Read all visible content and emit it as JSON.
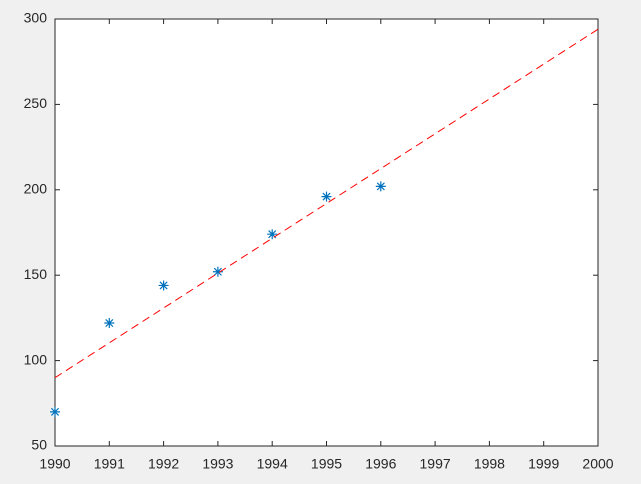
{
  "chart_data": {
    "type": "scatter",
    "series": [
      {
        "color": "#0072bd",
        "marker": "*",
        "line_style": "none",
        "x": [
          1990,
          1991,
          1992,
          1993,
          1994,
          1995,
          1996
        ],
        "values": [
          70,
          122,
          144,
          152,
          174,
          196,
          202
        ]
      },
      {
        "color": "#ff0000",
        "marker": "none",
        "line_style": "dashed",
        "x": [
          1990,
          2000
        ],
        "values": [
          90,
          294
        ]
      }
    ],
    "xlim": [
      1990,
      2000
    ],
    "xticks": [
      1990,
      1991,
      1992,
      1993,
      1994,
      1995,
      1996,
      1997,
      1998,
      1999,
      2000
    ],
    "ylim": [
      50,
      300
    ],
    "yticks": [
      50,
      100,
      150,
      200,
      250,
      300
    ],
    "grid": false,
    "box": true
  }
}
